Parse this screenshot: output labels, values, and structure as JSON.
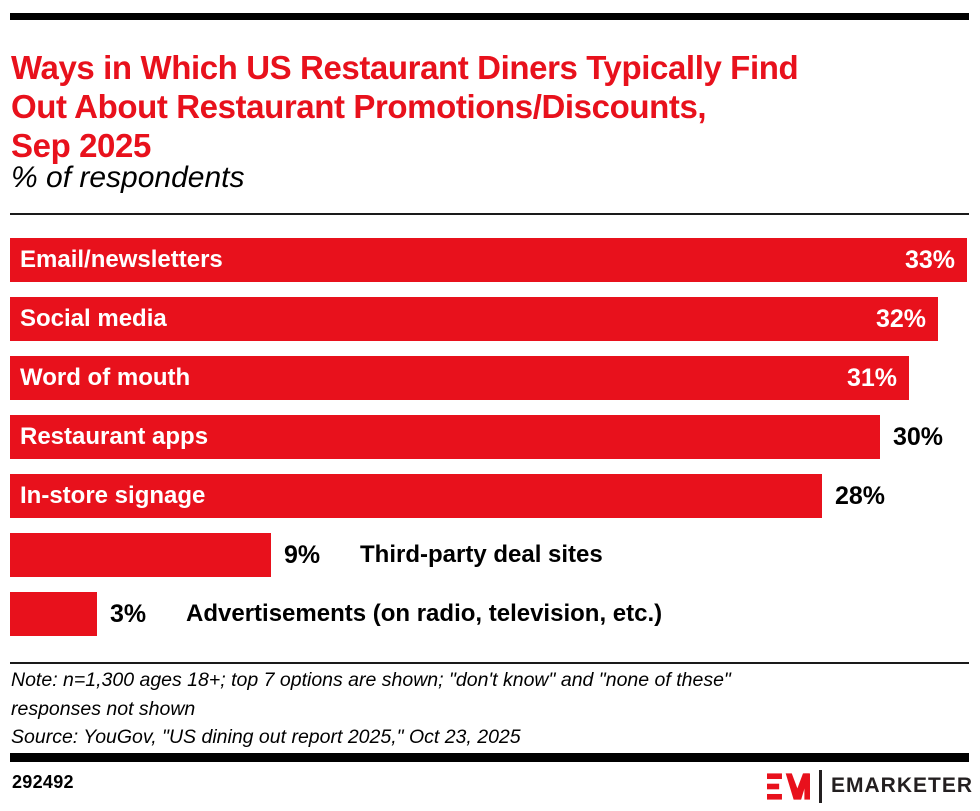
{
  "page": {
    "accent_color": "#E8111C",
    "text_color": "#000000"
  },
  "header": {
    "title": "Ways in Which US Restaurant Diners Typically Find Out About Restaurant Promotions/Discounts, Sep 2025",
    "title_lines": [
      "Ways in Which US Restaurant Diners Typically Find",
      "Out About Restaurant Promotions/Discounts,",
      "Sep 2025"
    ],
    "subtitle": "% of respondents"
  },
  "chart_data": {
    "type": "bar",
    "orientation": "horizontal",
    "title": "Ways in Which US Restaurant Diners Typically Find Out About Restaurant Promotions/Discounts, Sep 2025",
    "subtitle": "% of respondents",
    "unit": "%",
    "xlim": [
      0,
      33
    ],
    "grid": false,
    "legend": false,
    "bar_color": "#E8111C",
    "categories": [
      "Email/newsletters",
      "Social media",
      "Word of mouth",
      "Restaurant apps",
      "In-store signage",
      "Third-party deal sites",
      "Advertisements (on radio, television, etc.)"
    ],
    "values": [
      33,
      32,
      31,
      30,
      28,
      9,
      3
    ],
    "bars": [
      {
        "label": "Email/newsletters",
        "value": 33,
        "value_label": "33%",
        "label_placement": "inside",
        "value_placement": "inside"
      },
      {
        "label": "Social media",
        "value": 32,
        "value_label": "32%",
        "label_placement": "inside",
        "value_placement": "inside"
      },
      {
        "label": "Word of mouth",
        "value": 31,
        "value_label": "31%",
        "label_placement": "inside",
        "value_placement": "inside"
      },
      {
        "label": "Restaurant apps",
        "value": 30,
        "value_label": "30%",
        "label_placement": "inside",
        "value_placement": "outside"
      },
      {
        "label": "In-store signage",
        "value": 28,
        "value_label": "28%",
        "label_placement": "inside",
        "value_placement": "outside"
      },
      {
        "label": "Third-party deal sites",
        "value": 9,
        "value_label": "9%",
        "label_placement": "outside",
        "value_placement": "outside"
      },
      {
        "label": "Advertisements (on radio, television, etc.)",
        "value": 3,
        "value_label": "3%",
        "label_placement": "outside",
        "value_placement": "outside"
      }
    ]
  },
  "footer": {
    "note_lines": [
      "Note: n=1,300 ages 18+; top 7 options are shown; \"don't know\" and \"none of these\"",
      "responses not shown"
    ],
    "source": "Source: YouGov, \"US dining out report 2025,\" Oct 23, 2025",
    "chart_id": "292492",
    "brand_name": "EMARKETER"
  }
}
